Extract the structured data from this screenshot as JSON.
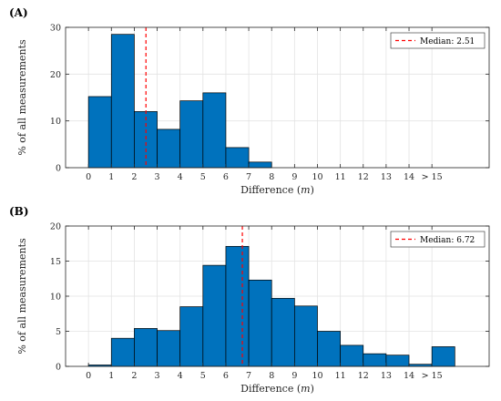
{
  "chart_data": [
    {
      "type": "bar",
      "panel_label": "(A)",
      "categories": [
        "0",
        "1",
        "2",
        "3",
        "4",
        "5",
        "6",
        "7",
        "8",
        "9",
        "10",
        "11",
        "12",
        "13",
        "14",
        "> 15"
      ],
      "values": [
        15.2,
        28.5,
        12.0,
        8.2,
        14.3,
        16.0,
        4.3,
        1.2,
        0,
        0,
        0,
        0,
        0,
        0,
        0,
        0
      ],
      "median": 2.51,
      "legend_label": "Median: 2.51",
      "xlabel_prefix": "Difference (",
      "xlabel_var": "m",
      "xlabel_suffix": ")",
      "ylabel": "% of all measurements",
      "ylim": [
        0,
        30
      ],
      "yticks": [
        "0",
        "10",
        "20",
        "30"
      ],
      "xlim": [
        -1,
        17.5
      ],
      "grid": true,
      "legend": "top-right"
    },
    {
      "type": "bar",
      "panel_label": "(B)",
      "categories": [
        "0",
        "1",
        "2",
        "3",
        "4",
        "5",
        "6",
        "7",
        "8",
        "9",
        "10",
        "11",
        "12",
        "13",
        "14",
        "> 15"
      ],
      "values": [
        0.2,
        4.0,
        5.4,
        5.1,
        8.5,
        14.4,
        17.1,
        12.3,
        9.7,
        8.6,
        5.0,
        3.0,
        1.8,
        1.6,
        0.3,
        2.8
      ],
      "median": 6.72,
      "legend_label": "Median: 6.72",
      "xlabel_prefix": "Difference (",
      "xlabel_var": "m",
      "xlabel_suffix": ")",
      "ylabel": "% of all measurements",
      "ylim": [
        0,
        20
      ],
      "yticks": [
        "0",
        "5",
        "10",
        "15",
        "20"
      ],
      "xlim": [
        -1,
        17.5
      ],
      "grid": true,
      "legend": "top-right"
    }
  ],
  "colors": {
    "bar_fill": "#0072BD",
    "bar_edge": "#000000",
    "median_line": "#FF0000",
    "grid": "#E3E3E3",
    "axis": "#262626"
  }
}
